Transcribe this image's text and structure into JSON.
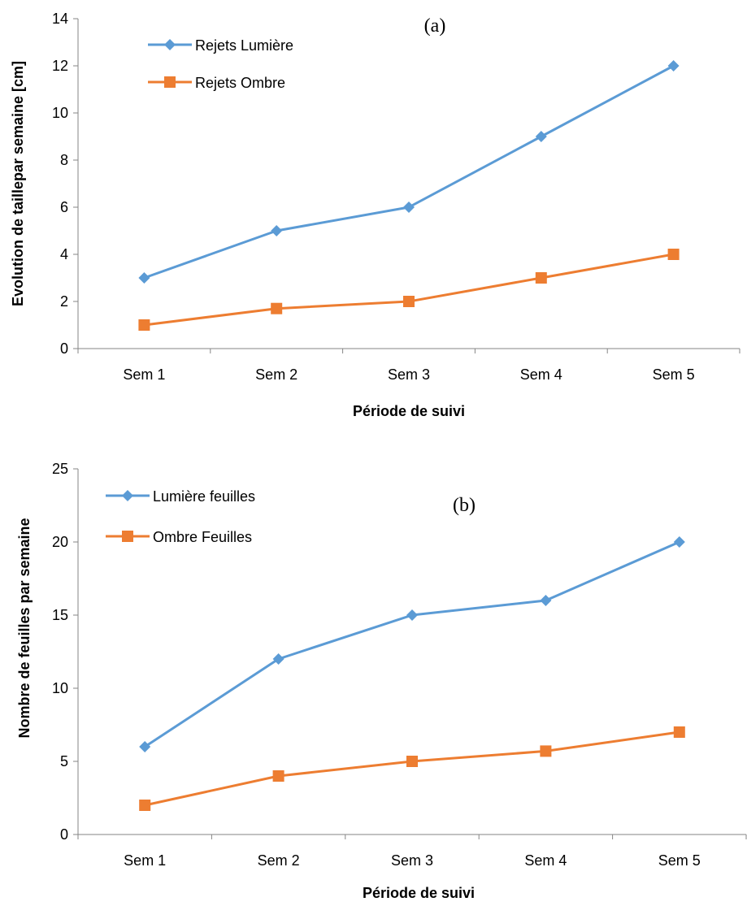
{
  "chart_data": [
    {
      "type": "line",
      "annotation": "(a)",
      "title": "",
      "xlabel": "Période de suivi",
      "ylabel": "Evolution de taillepar semaine [cm]",
      "categories": [
        "Sem 1",
        "Sem 2",
        "Sem 3",
        "Sem 4",
        "Sem 5"
      ],
      "ylim": [
        0,
        14
      ],
      "yticks": [
        0,
        2,
        4,
        6,
        8,
        10,
        12,
        14
      ],
      "legend_position": "top-left",
      "grid": false,
      "series": [
        {
          "name": "Rejets Lumière",
          "values": [
            3,
            5,
            6,
            9,
            12
          ],
          "color": "#5B9BD5",
          "marker": "diamond"
        },
        {
          "name": "Rejets Ombre",
          "values": [
            1,
            1.7,
            2,
            3,
            4
          ],
          "color": "#ED7D31",
          "marker": "square"
        }
      ]
    },
    {
      "type": "line",
      "annotation": "(b)",
      "title": "",
      "xlabel": "Période de suivi",
      "ylabel": "Nombre de feuilles par semaine",
      "categories": [
        "Sem 1",
        "Sem 2",
        "Sem 3",
        "Sem 4",
        "Sem 5"
      ],
      "ylim": [
        0,
        25
      ],
      "yticks": [
        0,
        5,
        10,
        15,
        20,
        25
      ],
      "legend_position": "top-left",
      "grid": false,
      "series": [
        {
          "name": "Lumière feuilles",
          "values": [
            6,
            12,
            15,
            16,
            20
          ],
          "color": "#5B9BD5",
          "marker": "diamond"
        },
        {
          "name": "Ombre Feuilles",
          "values": [
            2,
            4,
            5,
            5.7,
            7
          ],
          "color": "#ED7D31",
          "marker": "square"
        }
      ]
    }
  ]
}
